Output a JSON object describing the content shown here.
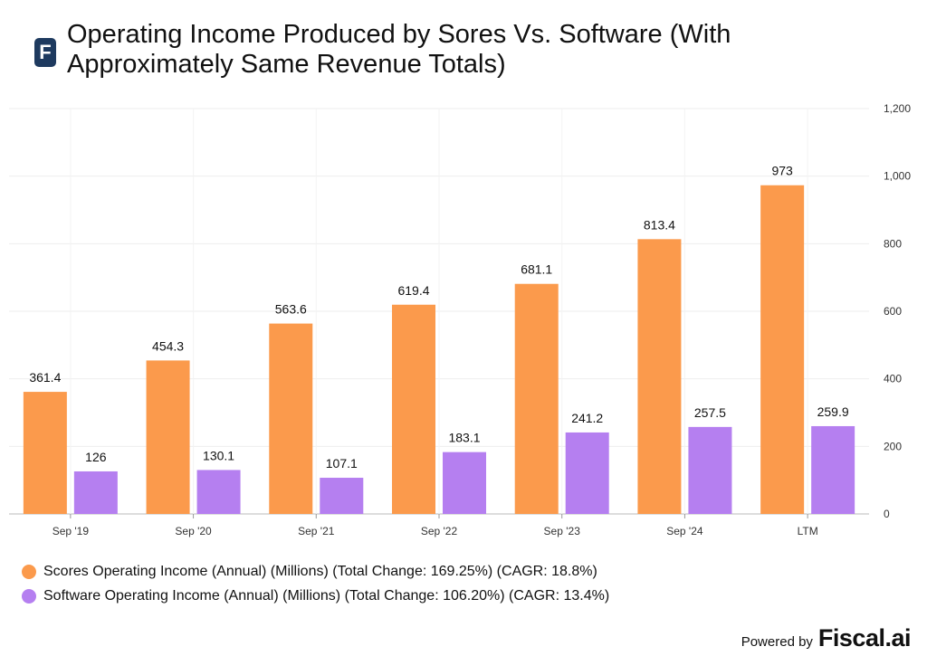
{
  "header": {
    "logo_letter": "F",
    "title_line1": "Operating Income Produced by Sores Vs. Software (With",
    "title_line2": "Approximately Same Revenue Totals)"
  },
  "footer": {
    "powered_by": "Powered by",
    "brand": "Fiscal.ai"
  },
  "colors": {
    "scores": "#fb9a4c",
    "software": "#b57ff0"
  },
  "chart_data": {
    "type": "bar",
    "categories": [
      "Sep '19",
      "Sep '20",
      "Sep '21",
      "Sep '22",
      "Sep '23",
      "Sep '24",
      "LTM"
    ],
    "series": [
      {
        "name": "Scores Operating Income (Annual) (Millions) (Total Change: 169.25%) (CAGR: 18.8%)",
        "values": [
          361.4,
          454.3,
          563.6,
          619.4,
          681.1,
          813.4,
          973
        ],
        "labels": [
          "361.4",
          "454.3",
          "563.6",
          "619.4",
          "681.1",
          "813.4",
          "973"
        ]
      },
      {
        "name": "Software Operating Income (Annual) (Millions) (Total Change: 106.20%) (CAGR: 13.4%)",
        "values": [
          126,
          130.1,
          107.1,
          183.1,
          241.2,
          257.5,
          259.9
        ],
        "labels": [
          "126",
          "130.1",
          "107.1",
          "183.1",
          "241.2",
          "257.5",
          "259.9"
        ]
      }
    ],
    "yticks": [
      "0",
      "200",
      "400",
      "600",
      "800",
      "1,000",
      "1,200"
    ],
    "ylim": [
      0,
      1200
    ],
    "y_axis_side": "right",
    "legend_position": "bottom-left"
  }
}
